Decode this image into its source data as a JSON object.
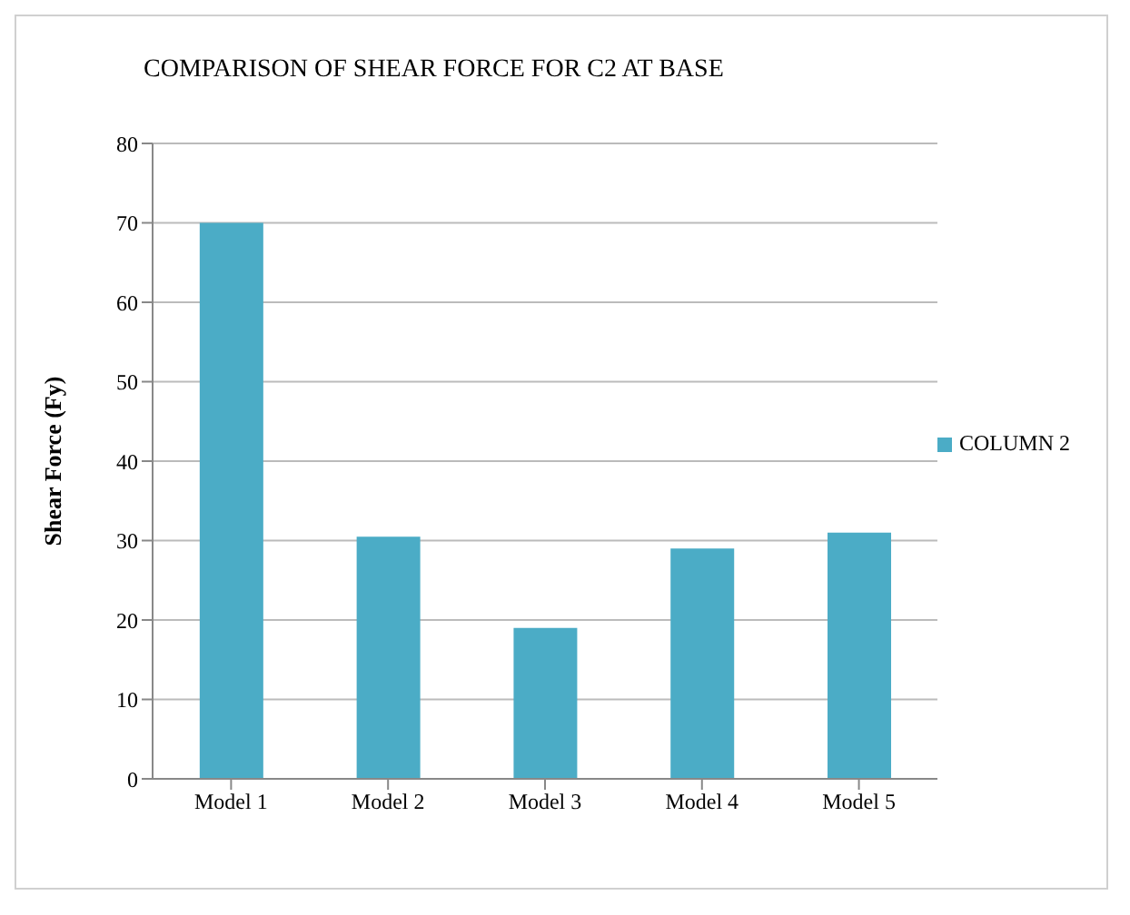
{
  "chart_data": {
    "type": "bar",
    "title": "COMPARISON OF SHEAR FORCE FOR C2 AT BASE",
    "ylabel": "Shear Force (Fy)",
    "categories": [
      "Model 1",
      "Model 2",
      "Model 3",
      "Model 4",
      "Model 5"
    ],
    "series": [
      {
        "name": "COLUMN 2",
        "color": "#4bacc6",
        "values": [
          70,
          30.5,
          19,
          29,
          31
        ]
      }
    ],
    "ylim": [
      0,
      80
    ],
    "yticks": [
      0,
      10,
      20,
      30,
      40,
      50,
      60,
      70,
      80
    ],
    "grid": "y",
    "legend": "right"
  }
}
